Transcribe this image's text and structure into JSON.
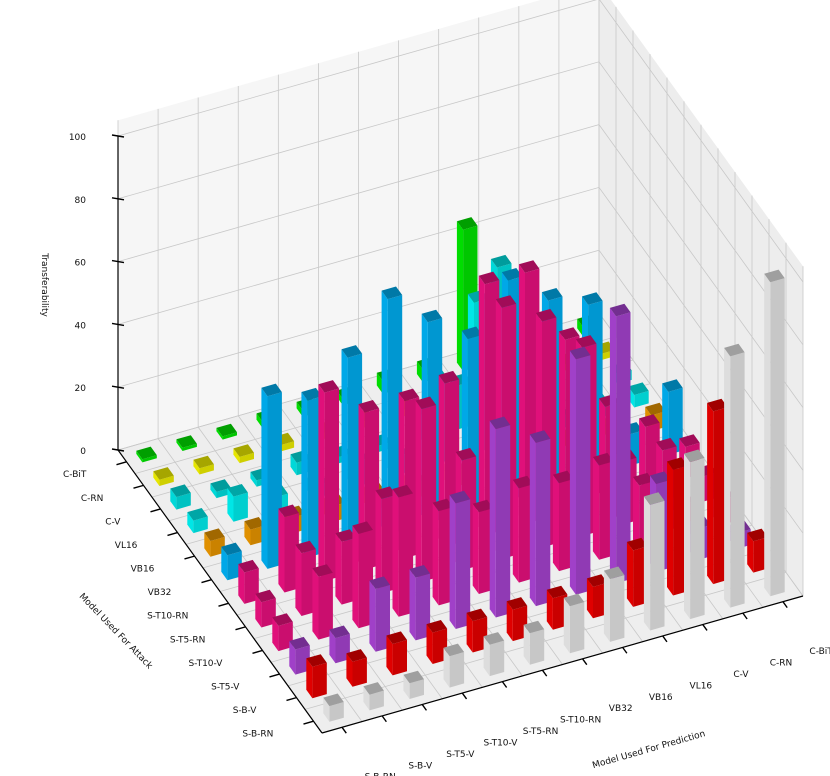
{
  "chart_data": {
    "type": "bar3d",
    "zlabel": "Transferability",
    "xlabel": "Model Used For Prediction",
    "ylabel": "Model Used For Attack",
    "zlim": [
      0,
      100
    ],
    "zticks": [
      "0",
      "20",
      "40",
      "60",
      "80",
      "100"
    ],
    "prediction_models": [
      "S-B-RN",
      "S-B-V",
      "S-T5-V",
      "S-T10-V",
      "S-T5-RN",
      "S-T10-RN",
      "VB32",
      "VB16",
      "VL16",
      "C-V",
      "C-RN",
      "C-BiT"
    ],
    "attack_models": [
      "C-BiT",
      "C-RN",
      "C-V",
      "VL16",
      "VB16",
      "VB32",
      "S-T10-RN",
      "S-T5-RN",
      "S-T10-V",
      "S-T5-V",
      "S-B-V",
      "S-B-RN"
    ],
    "colors": {
      "C-BiT": "#00dd00",
      "C-RN": "#e6e600",
      "C-V": "#00d8d8",
      "VL16": "#00e6e6",
      "VB16": "#e09000",
      "VB32": "#00a8e8",
      "S-T10-RN": "#e0107a",
      "S-T5-RN": "#e0107a",
      "S-T10-V": "#e0107a",
      "S-T5-V": "#a040c8",
      "S-B-V": "#e00000",
      "S-B-RN": "#dddddd",
      "grid": "#c8c8c8",
      "pane_floor": "#eeeeee",
      "pane_back": "#f6f6f6",
      "pane_side": "#ededed"
    },
    "series": [
      {
        "attack": "C-BiT",
        "values": [
          1,
          1,
          1,
          2,
          2,
          2,
          4,
          4,
          45,
          3,
          3,
          3
        ]
      },
      {
        "attack": "C-RN",
        "values": [
          2,
          2,
          2,
          2,
          2,
          2,
          2,
          2,
          2,
          2,
          2,
          2
        ]
      },
      {
        "attack": "C-V",
        "values": [
          4,
          2,
          2,
          4,
          2,
          2,
          8,
          14,
          48,
          3,
          2,
          3
        ]
      },
      {
        "attack": "VL16",
        "values": [
          4,
          8,
          4,
          4,
          8,
          6,
          26,
          48,
          40,
          4,
          4,
          4
        ]
      },
      {
        "attack": "VB16",
        "values": [
          5,
          5,
          5,
          5,
          5,
          5,
          5,
          5,
          5,
          5,
          5,
          5
        ]
      },
      {
        "attack": "VB32",
        "values": [
          8,
          55,
          50,
          60,
          75,
          64,
          55,
          70,
          60,
          55,
          10,
          20
        ]
      },
      {
        "attack": "S-T10-RN",
        "values": [
          10,
          24,
          60,
          50,
          50,
          52,
          80,
          80,
          55,
          30,
          20,
          10
        ]
      },
      {
        "attack": "S-T5-RN",
        "values": [
          8,
          20,
          20,
          30,
          55,
          35,
          80,
          72,
          60,
          20,
          20,
          8
        ]
      },
      {
        "attack": "S-T10-V",
        "values": [
          8,
          20,
          30,
          38,
          30,
          26,
          30,
          28,
          30,
          20,
          10,
          8
        ]
      },
      {
        "attack": "S-T5-V",
        "values": [
          8,
          8,
          20,
          20,
          40,
          60,
          52,
          75,
          85,
          28,
          10,
          5
        ]
      },
      {
        "attack": "S-B-V",
        "values": [
          10,
          8,
          10,
          10,
          10,
          10,
          10,
          10,
          18,
          40,
          55,
          10
        ]
      },
      {
        "attack": "S-B-RN",
        "values": [
          5,
          5,
          5,
          10,
          10,
          10,
          15,
          20,
          40,
          50,
          80,
          100
        ]
      }
    ]
  }
}
